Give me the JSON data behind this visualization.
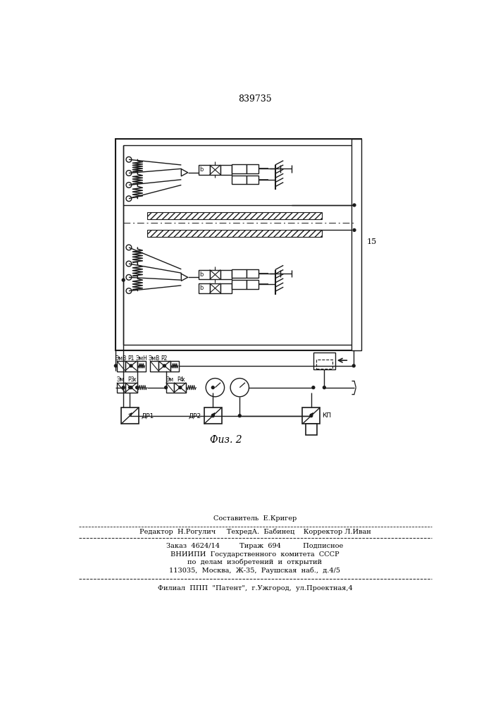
{
  "patent_number": "839735",
  "fig_label": "Физ. 2",
  "label_15": "15",
  "lc": "#1a1a1a",
  "tc": "#000000",
  "footer": [
    "Составитель  Е.Кригер",
    "Редактор  Н.Рогулич     ТехредА.  Бабинец    Корректор Л.Иван",
    "Заказ  4624/14         Тираж  694          Подписное",
    "ВНИИПИ  Государственного  комитета  СССР",
    "по  делам  изобретений  и  открытий",
    "113035,  Москва,  Ж-35,  Раушская  наб.,  д.4/5",
    "Филиал  ППП  \"Патент\",  г.Ужгород,  ул.Проектная,4"
  ]
}
